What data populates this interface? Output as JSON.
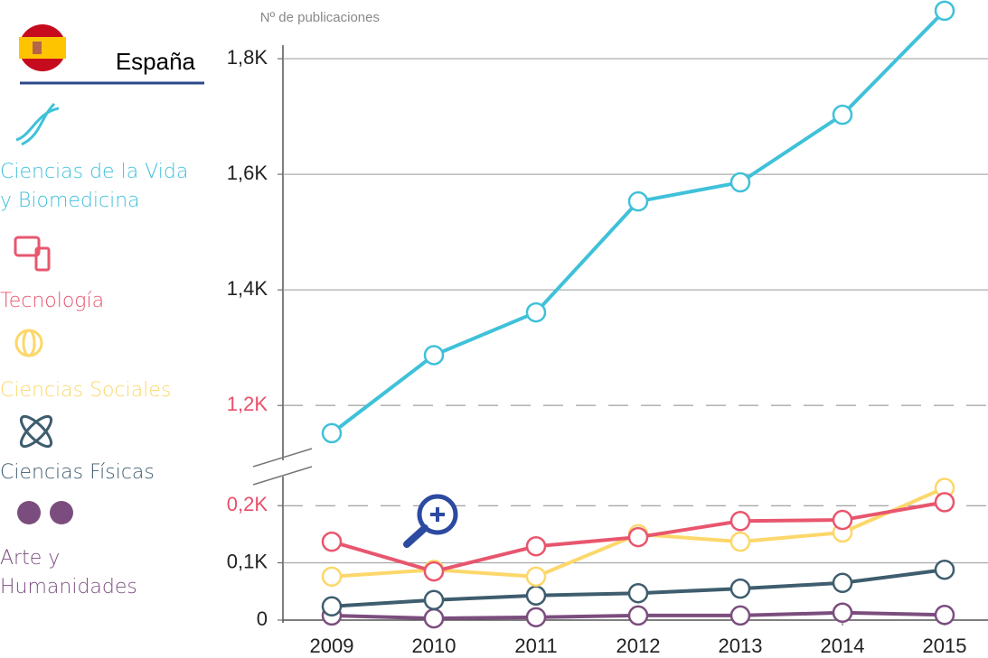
{
  "chart_data": {
    "type": "line",
    "y_label": "Nº de publicaciones",
    "country": "España",
    "categories": [
      2009,
      2010,
      2011,
      2012,
      2013,
      2014,
      2015
    ],
    "ylim": [
      0,
      235
    ],
    "yticks": [
      0,
      {
        "value": 100,
        "label": "0,1K"
      },
      {
        "value": 200,
        "label": "0,2K"
      }
    ],
    "ylim_upper": [
      1130,
      1900
    ],
    "yticks_upper": [
      {
        "value": 1200,
        "label": "1,2K"
      },
      {
        "value": 1400,
        "label": "1,4K"
      },
      {
        "value": 1600,
        "label": "1,6K"
      },
      {
        "value": 1800,
        "label": "1,8K"
      }
    ],
    "break_color": "#e8506a",
    "grid": true,
    "series": [
      {
        "name": "Ciencias de la Vida y Biomedicina",
        "color": "#3fc1d9",
        "axis": "upper",
        "values": [
          1152,
          1287,
          1361,
          1553,
          1586,
          1703,
          1883
        ]
      },
      {
        "name": "Tecnología",
        "color": "#e8566e",
        "values": [
          137,
          85,
          129,
          145,
          173,
          175,
          206
        ]
      },
      {
        "name": "Ciencias Sociales",
        "color": "#fcd76a",
        "values": [
          76,
          88,
          76,
          150,
          137,
          153,
          231
        ]
      },
      {
        "name": "Ciencias Físicas",
        "color": "#3e5d6e",
        "values": [
          24,
          35,
          43,
          47,
          55,
          65,
          88
        ]
      },
      {
        "name": "Arte y Humanidades",
        "color": "#7b4d7e",
        "values": [
          8,
          3,
          5,
          8,
          8,
          13,
          9
        ]
      }
    ]
  }
}
